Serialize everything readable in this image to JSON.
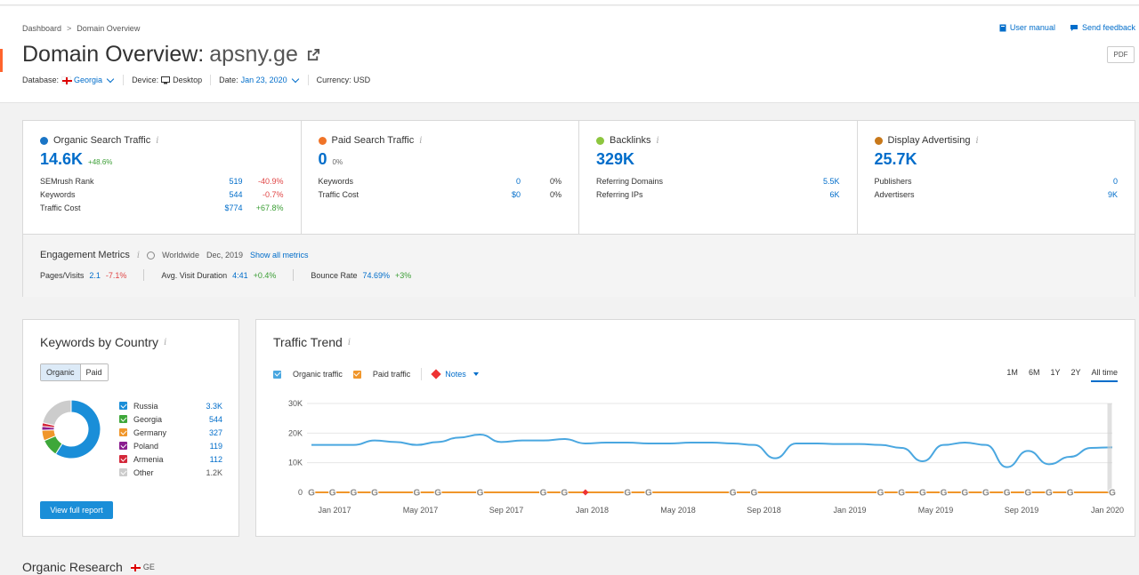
{
  "breadcrumb": [
    "Dashboard",
    "Domain Overview"
  ],
  "title": {
    "prefix": "Domain Overview:",
    "domain": "apsny.ge"
  },
  "meta": {
    "database_label": "Database:",
    "database_value": "Georgia",
    "device_label": "Device:",
    "device_value": "Desktop",
    "date_label": "Date:",
    "date_value": "Jan 23, 2020",
    "currency": "Currency: USD"
  },
  "header_links": {
    "manual": "User manual",
    "feedback": "Send feedback",
    "pdf": "PDF"
  },
  "widgets": [
    {
      "title": "Organic Search Traffic",
      "color": "#1a75c6",
      "value": "14.6K",
      "change": "+48.6%",
      "rows": [
        [
          "SEMrush Rank",
          "519",
          "-40.9%"
        ],
        [
          "Keywords",
          "544",
          "-0.7%"
        ],
        [
          "Traffic Cost",
          "$774",
          "+67.8%"
        ]
      ]
    },
    {
      "title": "Paid Search Traffic",
      "color": "#f07428",
      "value": "0",
      "change": "0%",
      "rows": [
        [
          "Keywords",
          "0",
          "0%"
        ],
        [
          "Traffic Cost",
          "$0",
          "0%"
        ]
      ]
    },
    {
      "title": "Backlinks",
      "color": "#8dc63f",
      "value": "329K",
      "change": "",
      "rows": [
        [
          "Referring Domains",
          "5.5K",
          ""
        ],
        [
          "Referring IPs",
          "6K",
          ""
        ]
      ]
    },
    {
      "title": "Display Advertising",
      "color": "#c8781a",
      "value": "25.7K",
      "change": "",
      "rows": [
        [
          "Publishers",
          "0",
          ""
        ],
        [
          "Advertisers",
          "9K",
          ""
        ]
      ]
    }
  ],
  "engagement": {
    "title": "Engagement Metrics",
    "scope": "Worldwide",
    "date": "Dec, 2019",
    "link": "Show all metrics",
    "metrics": [
      {
        "label": "Pages/Visits",
        "value": "2.1",
        "change": "-7.1%"
      },
      {
        "label": "Avg. Visit Duration",
        "value": "4:41",
        "change": "+0.4%"
      },
      {
        "label": "Bounce Rate",
        "value": "74.69%",
        "change": "+3%"
      }
    ]
  },
  "kbc": {
    "title": "Keywords by Country",
    "toggle": [
      "Organic",
      "Paid"
    ],
    "countries": [
      {
        "name": "Russia",
        "value": "3.3K",
        "num": 3300,
        "color": "#1a8ed8"
      },
      {
        "name": "Georgia",
        "value": "544",
        "num": 544,
        "color": "#3ea73a"
      },
      {
        "name": "Germany",
        "value": "327",
        "num": 327,
        "color": "#f0962b"
      },
      {
        "name": "Poland",
        "value": "119",
        "num": 119,
        "color": "#8a1d8f"
      },
      {
        "name": "Armenia",
        "value": "112",
        "num": 112,
        "color": "#d4283a"
      },
      {
        "name": "Other",
        "value": "1.2K",
        "num": 1200,
        "color": "#cccccc"
      }
    ],
    "button": "View full report"
  },
  "traffic_trend": {
    "title": "Traffic Trend",
    "legend": {
      "organic": "Organic traffic",
      "paid": "Paid traffic",
      "notes": "Notes"
    },
    "periods": [
      "1M",
      "6M",
      "1Y",
      "2Y",
      "All time"
    ]
  },
  "organic_research": {
    "title": "Organic Research",
    "flag_label": "GE"
  },
  "chart_data": {
    "type": "line",
    "y_ticks": [
      "0",
      "10K",
      "20K",
      "30K"
    ],
    "ylim": [
      0,
      30000
    ],
    "x_labels": [
      "Jan 2017",
      "May 2017",
      "Sep 2017",
      "Jan 2018",
      "May 2018",
      "Sep 2018",
      "Jan 2019",
      "May 2019",
      "Sep 2019",
      "Jan 2020"
    ],
    "series": [
      {
        "name": "Organic traffic",
        "color": "#4aa7e0",
        "x": [
          0,
          1,
          2,
          3,
          4,
          5,
          6,
          7,
          8,
          9,
          10,
          11,
          12,
          13,
          14,
          15,
          16,
          17,
          18,
          19,
          20,
          21,
          22,
          23,
          24,
          25,
          26,
          27,
          28,
          29,
          30,
          31,
          32,
          33,
          34,
          35,
          36,
          37,
          38
        ],
        "values": [
          16000,
          16000,
          16000,
          17500,
          17000,
          16000,
          17000,
          18500,
          19500,
          17000,
          17500,
          17500,
          18000,
          16500,
          16800,
          16800,
          16500,
          16500,
          16800,
          16800,
          16500,
          16000,
          11500,
          16500,
          16500,
          16300,
          16300,
          16000,
          15000,
          10500,
          16000,
          16800,
          16000,
          8500,
          14000,
          9500,
          12000,
          15000,
          15200
        ]
      },
      {
        "name": "Paid traffic",
        "color": "#f0962b",
        "x": [
          0,
          38
        ],
        "values": [
          0,
          0
        ]
      }
    ]
  }
}
